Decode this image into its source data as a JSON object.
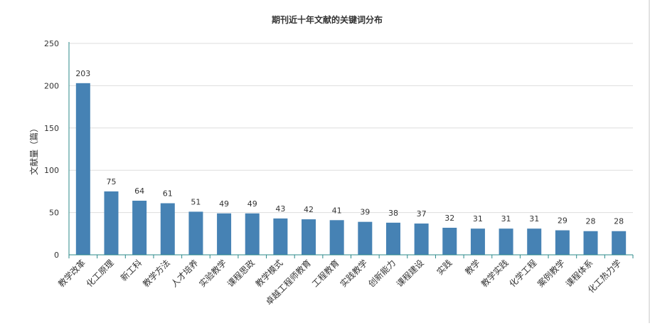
{
  "chart_data": {
    "type": "bar",
    "title": "期刊近十年文献的关键词分布",
    "xlabel": "",
    "ylabel": "文献量（篇）",
    "ylim": [
      0,
      250
    ],
    "yticks": [
      0,
      50,
      100,
      150,
      200,
      250
    ],
    "grid": true,
    "legend": "none",
    "categories": [
      "教学改革",
      "化工原理",
      "新工科",
      "教学方法",
      "人才培养",
      "实验教学",
      "课程思政",
      "教学模式",
      "卓越工程师教育",
      "工程教育",
      "实践教学",
      "创新能力",
      "课程建设",
      "实践",
      "教学",
      "教学实践",
      "化学工程",
      "案例教学",
      "课程体系",
      "化工热力学"
    ],
    "values": [
      203,
      75,
      64,
      61,
      51,
      49,
      49,
      43,
      42,
      41,
      39,
      38,
      37,
      32,
      31,
      31,
      31,
      29,
      28,
      28
    ],
    "colors": {
      "bar": "#4682b4",
      "axis": "#2b8a8a",
      "grid": "#dddddd",
      "text": "#333333"
    }
  }
}
